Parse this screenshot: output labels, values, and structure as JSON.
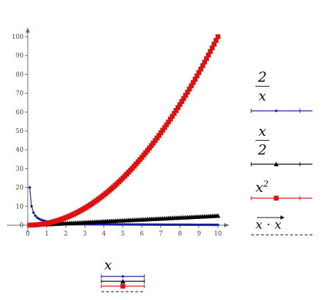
{
  "chart_data": {
    "type": "line",
    "xlim": [
      0,
      10
    ],
    "ylim": [
      0,
      105
    ],
    "x_ticks": [
      0,
      1,
      2,
      3,
      4,
      5,
      6,
      7,
      8,
      9,
      10
    ],
    "y_ticks": [
      0,
      10,
      20,
      30,
      40,
      50,
      60,
      70,
      80,
      90,
      100
    ],
    "x_range": {
      "start": 0.1,
      "end": 10,
      "step": 0.1
    },
    "xlabel": "x",
    "grid": false,
    "series": [
      {
        "name": "2/x",
        "expr": "2/x",
        "color": "#1a1a9e",
        "marker": "circle",
        "style": "solid"
      },
      {
        "name": "x/2",
        "expr": "x/2",
        "color": "#000000",
        "marker": "triangle",
        "style": "solid"
      },
      {
        "name": "x^2",
        "expr": "x^2",
        "color": "#e01010",
        "marker": "square",
        "style": "solid"
      },
      {
        "name": "x·x (vectorized)",
        "expr": "x*x",
        "color": "#1a3a8a",
        "marker": "none",
        "style": "dashed"
      }
    ]
  },
  "legend": {
    "s1_num": "2",
    "s1_den": "x",
    "s2_num": "x",
    "s2_den": "2",
    "s3_base": "x",
    "s3_exp": "2",
    "s4_expr": "x · x",
    "x_label": "x"
  }
}
